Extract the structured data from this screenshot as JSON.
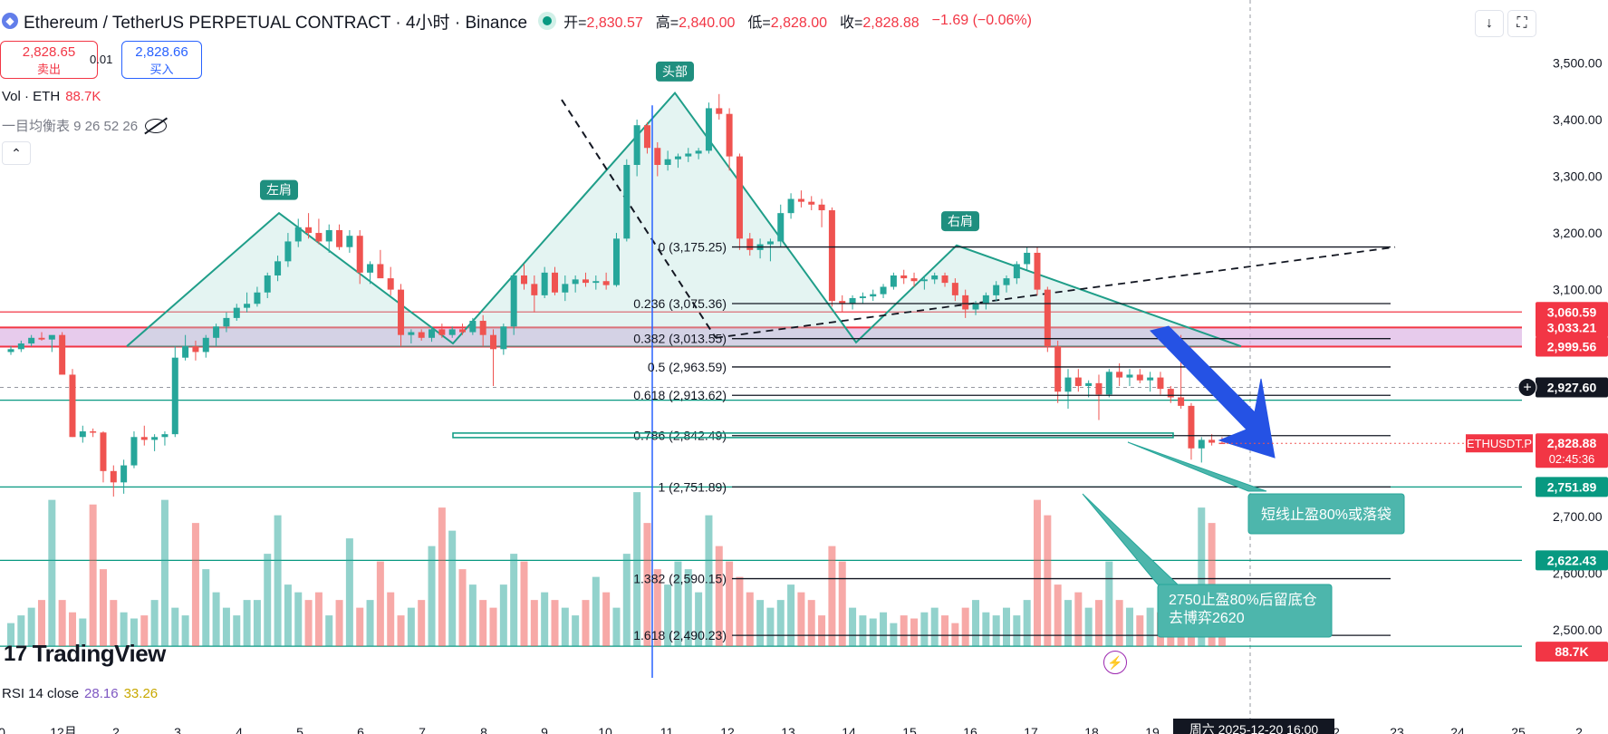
{
  "header": {
    "title": "Ethereum / TetherUS PERPETUAL CONTRACT · 4小时 · Binance",
    "ohlc": [
      {
        "label": "开=",
        "value": "2,830.57"
      },
      {
        "label": "高=",
        "value": "2,840.00"
      },
      {
        "label": "低=",
        "value": "2,828.00"
      },
      {
        "label": "收=",
        "value": "2,828.88"
      }
    ],
    "change": "−1.69 (−0.06%)",
    "download_icon": "arrow-down-icon",
    "fullscreen_icon": "fullscreen-icon"
  },
  "trade": {
    "sell_price": "2,828.65",
    "sell_label": "卖出",
    "spread": "0.01",
    "buy_price": "2,828.66",
    "buy_label": "买入"
  },
  "indicators": {
    "vol_label": "Vol · ETH",
    "vol_value": "88.7K",
    "ichimoku": "一目均衡表 9 26 52 26",
    "rsi_label": "RSI 14 close",
    "rsi_value": "28.16",
    "rsi_ma": "33.26"
  },
  "brand": "TradingView",
  "colors": {
    "up": "#26a69a",
    "down": "#ef5350",
    "fib": "#131722",
    "level_red": "#f23645",
    "level_green": "#089981",
    "pattern": "#1f9e89"
  },
  "chart_data": {
    "type": "candlestick",
    "symbol": "ETHUSDT.P",
    "timeframe": "4小时",
    "y_axis": {
      "range": [
        2430,
        3530
      ],
      "tick_labels": [
        "3,500.00",
        "3,400.00",
        "3,300.00",
        "3,200.00",
        "3,100.00",
        "2,700.00",
        "2,600.00",
        "2,500.00"
      ]
    },
    "x_axis": {
      "tick_labels": [
        "0",
        "12月",
        "2",
        "3",
        "4",
        "5",
        "6",
        "7",
        "8",
        "9",
        "10",
        "11",
        "12",
        "13",
        "14",
        "15",
        "16",
        "17",
        "18",
        "19",
        "2",
        "23",
        "24",
        "25",
        "2"
      ],
      "crosshair_label": "周六 2025-12-20  16:00"
    },
    "ohlc": [
      [
        2990,
        3000,
        2985,
        2995
      ],
      [
        2995,
        3010,
        2990,
        3005
      ],
      [
        3005,
        3020,
        3000,
        3015
      ],
      [
        3015,
        3025,
        3010,
        3012
      ],
      [
        3012,
        3018,
        2990,
        3020
      ],
      [
        3020,
        3025,
        2960,
        2950
      ],
      [
        2950,
        2960,
        2840,
        2840
      ],
      [
        2840,
        2860,
        2830,
        2850
      ],
      [
        2850,
        2855,
        2840,
        2848
      ],
      [
        2848,
        2850,
        2760,
        2780
      ],
      [
        2780,
        2790,
        2735,
        2760
      ],
      [
        2760,
        2800,
        2740,
        2790
      ],
      [
        2790,
        2850,
        2785,
        2840
      ],
      [
        2840,
        2860,
        2825,
        2835
      ],
      [
        2835,
        2845,
        2815,
        2840
      ],
      [
        2840,
        2850,
        2825,
        2845
      ],
      [
        2845,
        3000,
        2840,
        2980
      ],
      [
        2980,
        3020,
        2975,
        3000
      ],
      [
        3000,
        3010,
        2975,
        2990
      ],
      [
        2990,
        3020,
        2980,
        3015
      ],
      [
        3015,
        3040,
        3000,
        3035
      ],
      [
        3035,
        3060,
        3025,
        3050
      ],
      [
        3050,
        3075,
        3045,
        3068
      ],
      [
        3068,
        3095,
        3060,
        3075
      ],
      [
        3075,
        3105,
        3070,
        3095
      ],
      [
        3095,
        3130,
        3085,
        3125
      ],
      [
        3125,
        3160,
        3115,
        3150
      ],
      [
        3150,
        3200,
        3140,
        3185
      ],
      [
        3185,
        3225,
        3175,
        3210
      ],
      [
        3210,
        3235,
        3190,
        3200
      ],
      [
        3200,
        3225,
        3180,
        3185
      ],
      [
        3185,
        3215,
        3165,
        3205
      ],
      [
        3205,
        3215,
        3170,
        3175
      ],
      [
        3175,
        3205,
        3165,
        3195
      ],
      [
        3195,
        3205,
        3110,
        3130
      ],
      [
        3130,
        3150,
        3110,
        3145
      ],
      [
        3145,
        3170,
        3130,
        3120
      ],
      [
        3120,
        3140,
        3090,
        3100
      ],
      [
        3100,
        3110,
        3000,
        3020
      ],
      [
        3020,
        3030,
        3005,
        3025
      ],
      [
        3025,
        3030,
        3010,
        3015
      ],
      [
        3015,
        3035,
        3008,
        3030
      ],
      [
        3030,
        3040,
        3015,
        3020
      ],
      [
        3020,
        3035,
        3015,
        3030
      ],
      [
        3030,
        3040,
        3020,
        3025
      ],
      [
        3025,
        3050,
        3020,
        3045
      ],
      [
        3045,
        3055,
        3000,
        3020
      ],
      [
        3020,
        3030,
        2930,
        2995
      ],
      [
        2995,
        3040,
        2985,
        3035
      ],
      [
        3035,
        3130,
        3020,
        3125
      ],
      [
        3125,
        3145,
        3100,
        3110
      ],
      [
        3110,
        3125,
        3060,
        3090
      ],
      [
        3090,
        3140,
        3085,
        3130
      ],
      [
        3130,
        3140,
        3090,
        3095
      ],
      [
        3095,
        3125,
        3080,
        3110
      ],
      [
        3110,
        3125,
        3095,
        3118
      ],
      [
        3118,
        3130,
        3105,
        3112
      ],
      [
        3112,
        3125,
        3100,
        3115
      ],
      [
        3115,
        3130,
        3100,
        3108
      ],
      [
        3108,
        3200,
        3105,
        3190
      ],
      [
        3190,
        3330,
        3185,
        3320
      ],
      [
        3320,
        3400,
        3300,
        3390
      ],
      [
        3390,
        3395,
        3340,
        3350
      ],
      [
        3350,
        3360,
        3300,
        3320
      ],
      [
        3320,
        3345,
        3310,
        3330
      ],
      [
        3330,
        3340,
        3315,
        3335
      ],
      [
        3335,
        3350,
        3325,
        3340
      ],
      [
        3340,
        3350,
        3330,
        3345
      ],
      [
        3345,
        3430,
        3340,
        3420
      ],
      [
        3420,
        3445,
        3400,
        3410
      ],
      [
        3410,
        3420,
        3310,
        3335
      ],
      [
        3335,
        3340,
        3170,
        3190
      ],
      [
        3190,
        3200,
        3160,
        3170
      ],
      [
        3170,
        3190,
        3155,
        3180
      ],
      [
        3180,
        3190,
        3150,
        3185
      ],
      [
        3185,
        3250,
        3175,
        3235
      ],
      [
        3235,
        3270,
        3225,
        3260
      ],
      [
        3260,
        3275,
        3245,
        3255
      ],
      [
        3255,
        3265,
        3240,
        3250
      ],
      [
        3250,
        3260,
        3210,
        3240
      ],
      [
        3240,
        3245,
        3070,
        3080
      ],
      [
        3080,
        3090,
        3060,
        3075
      ],
      [
        3075,
        3090,
        3065,
        3085
      ],
      [
        3085,
        3095,
        3075,
        3088
      ],
      [
        3088,
        3100,
        3080,
        3092
      ],
      [
        3092,
        3110,
        3085,
        3105
      ],
      [
        3105,
        3130,
        3100,
        3125
      ],
      [
        3125,
        3135,
        3110,
        3120
      ],
      [
        3120,
        3130,
        3105,
        3115
      ],
      [
        3115,
        3125,
        3100,
        3118
      ],
      [
        3118,
        3130,
        3110,
        3125
      ],
      [
        3125,
        3130,
        3105,
        3112
      ],
      [
        3112,
        3120,
        3080,
        3090
      ],
      [
        3090,
        3100,
        3050,
        3065
      ],
      [
        3065,
        3080,
        3055,
        3075
      ],
      [
        3075,
        3095,
        3065,
        3090
      ],
      [
        3090,
        3115,
        3080,
        3108
      ],
      [
        3108,
        3125,
        3095,
        3120
      ],
      [
        3120,
        3150,
        3110,
        3145
      ],
      [
        3145,
        3175,
        3135,
        3165
      ],
      [
        3165,
        3175,
        3090,
        3100
      ],
      [
        3100,
        3105,
        2990,
        3000
      ],
      [
        3000,
        3010,
        2900,
        2920
      ],
      [
        2920,
        2960,
        2890,
        2945
      ],
      [
        2945,
        2960,
        2920,
        2930
      ],
      [
        2930,
        2940,
        2910,
        2935
      ],
      [
        2935,
        2950,
        2870,
        2915
      ],
      [
        2915,
        2960,
        2910,
        2955
      ],
      [
        2955,
        2970,
        2930,
        2945
      ],
      [
        2945,
        2960,
        2930,
        2950
      ],
      [
        2950,
        2960,
        2935,
        2940
      ],
      [
        2940,
        2955,
        2920,
        2945
      ],
      [
        2945,
        2955,
        2915,
        2925
      ],
      [
        2925,
        2930,
        2900,
        2910
      ],
      [
        2910,
        3020,
        2890,
        2895
      ],
      [
        2895,
        2900,
        2800,
        2820
      ],
      [
        2820,
        2840,
        2795,
        2835
      ],
      [
        2835,
        2845,
        2825,
        2830
      ],
      [
        2830,
        2840,
        2828,
        2828.88
      ]
    ],
    "volume_relative": [
      0.15,
      0.2,
      0.25,
      0.3,
      0.95,
      0.3,
      0.22,
      0.18,
      0.92,
      0.5,
      0.3,
      0.22,
      0.18,
      0.2,
      0.3,
      0.95,
      0.25,
      0.2,
      0.8,
      0.5,
      0.35,
      0.25,
      0.2,
      0.3,
      0.3,
      0.6,
      0.85,
      0.4,
      0.35,
      0.3,
      0.35,
      0.2,
      0.3,
      0.7,
      0.25,
      0.3,
      0.55,
      0.35,
      0.2,
      0.25,
      0.3,
      0.65,
      0.9,
      0.75,
      0.5,
      0.4,
      0.3,
      0.25,
      0.4,
      0.6,
      0.55,
      0.3,
      0.35,
      0.3,
      0.25,
      0.2,
      0.3,
      0.45,
      0.35,
      0.25,
      0.6,
      1.0,
      0.8,
      0.5,
      0.4,
      0.55,
      0.5,
      0.35,
      0.85,
      0.65,
      0.55,
      0.45,
      0.35,
      0.3,
      0.25,
      0.3,
      0.4,
      0.35,
      0.3,
      0.2,
      0.65,
      0.55,
      0.25,
      0.2,
      0.18,
      0.22,
      0.15,
      0.2,
      0.18,
      0.22,
      0.25,
      0.2,
      0.15,
      0.25,
      0.3,
      0.22,
      0.2,
      0.25,
      0.2,
      0.3,
      0.95,
      0.85,
      0.4,
      0.3,
      0.35,
      0.25,
      0.3,
      0.55,
      0.3,
      0.25,
      0.2,
      0.25,
      0.22,
      0.3,
      0.2,
      0.25,
      0.9,
      0.8,
      0.3,
      0.2,
      0.15
    ],
    "fib_levels": [
      {
        "ratio": "0",
        "price": 3175.25,
        "label": "0 (3,175.25)"
      },
      {
        "ratio": "0.236",
        "price": 3075.36,
        "label": "0.236 (3,075.36)"
      },
      {
        "ratio": "0.382",
        "price": 3013.55,
        "label": "0.382 (3,013.55)"
      },
      {
        "ratio": "0.5",
        "price": 2963.59,
        "label": "0.5 (2,963.59)"
      },
      {
        "ratio": "0.618",
        "price": 2913.62,
        "label": "0.618 (2,913.62)"
      },
      {
        "ratio": "0.786",
        "price": 2842.49,
        "label": "0.786 (2,842.49)"
      },
      {
        "ratio": "1",
        "price": 2751.89,
        "label": "1 (2,751.89)"
      },
      {
        "ratio": "1.382",
        "price": 2590.15,
        "label": "1.382 (2,590.15)"
      },
      {
        "ratio": "1.618",
        "price": 2490.23,
        "label": "1.618 (2,490.23)"
      }
    ],
    "price_levels": [
      {
        "price": 3060.59,
        "label": "3,060.59",
        "color": "#f23645"
      },
      {
        "price": 3033.21,
        "label": "3,033.21",
        "color": "#f23645"
      },
      {
        "price": 2999.56,
        "label": "2,999.56",
        "color": "#f23645"
      },
      {
        "price": 2927.6,
        "label": "2,927.60",
        "color": "#131722"
      },
      {
        "price": 2751.89,
        "label": "2,751.89",
        "color": "#089981"
      },
      {
        "price": 2622.43,
        "label": "2,622.43",
        "color": "#089981"
      }
    ],
    "current_price": {
      "symbol_label": "ETHUSDT.P",
      "price": "2,828.88",
      "countdown": "02:45:36",
      "value": 2828.88
    },
    "volume_axis_label": "88.7K",
    "pattern_labels": [
      "左肩",
      "头部",
      "右肩"
    ],
    "annotations": [
      "短线止盈80%或落袋",
      "2750止盈80%后留底仓\n去博弈2620"
    ]
  }
}
